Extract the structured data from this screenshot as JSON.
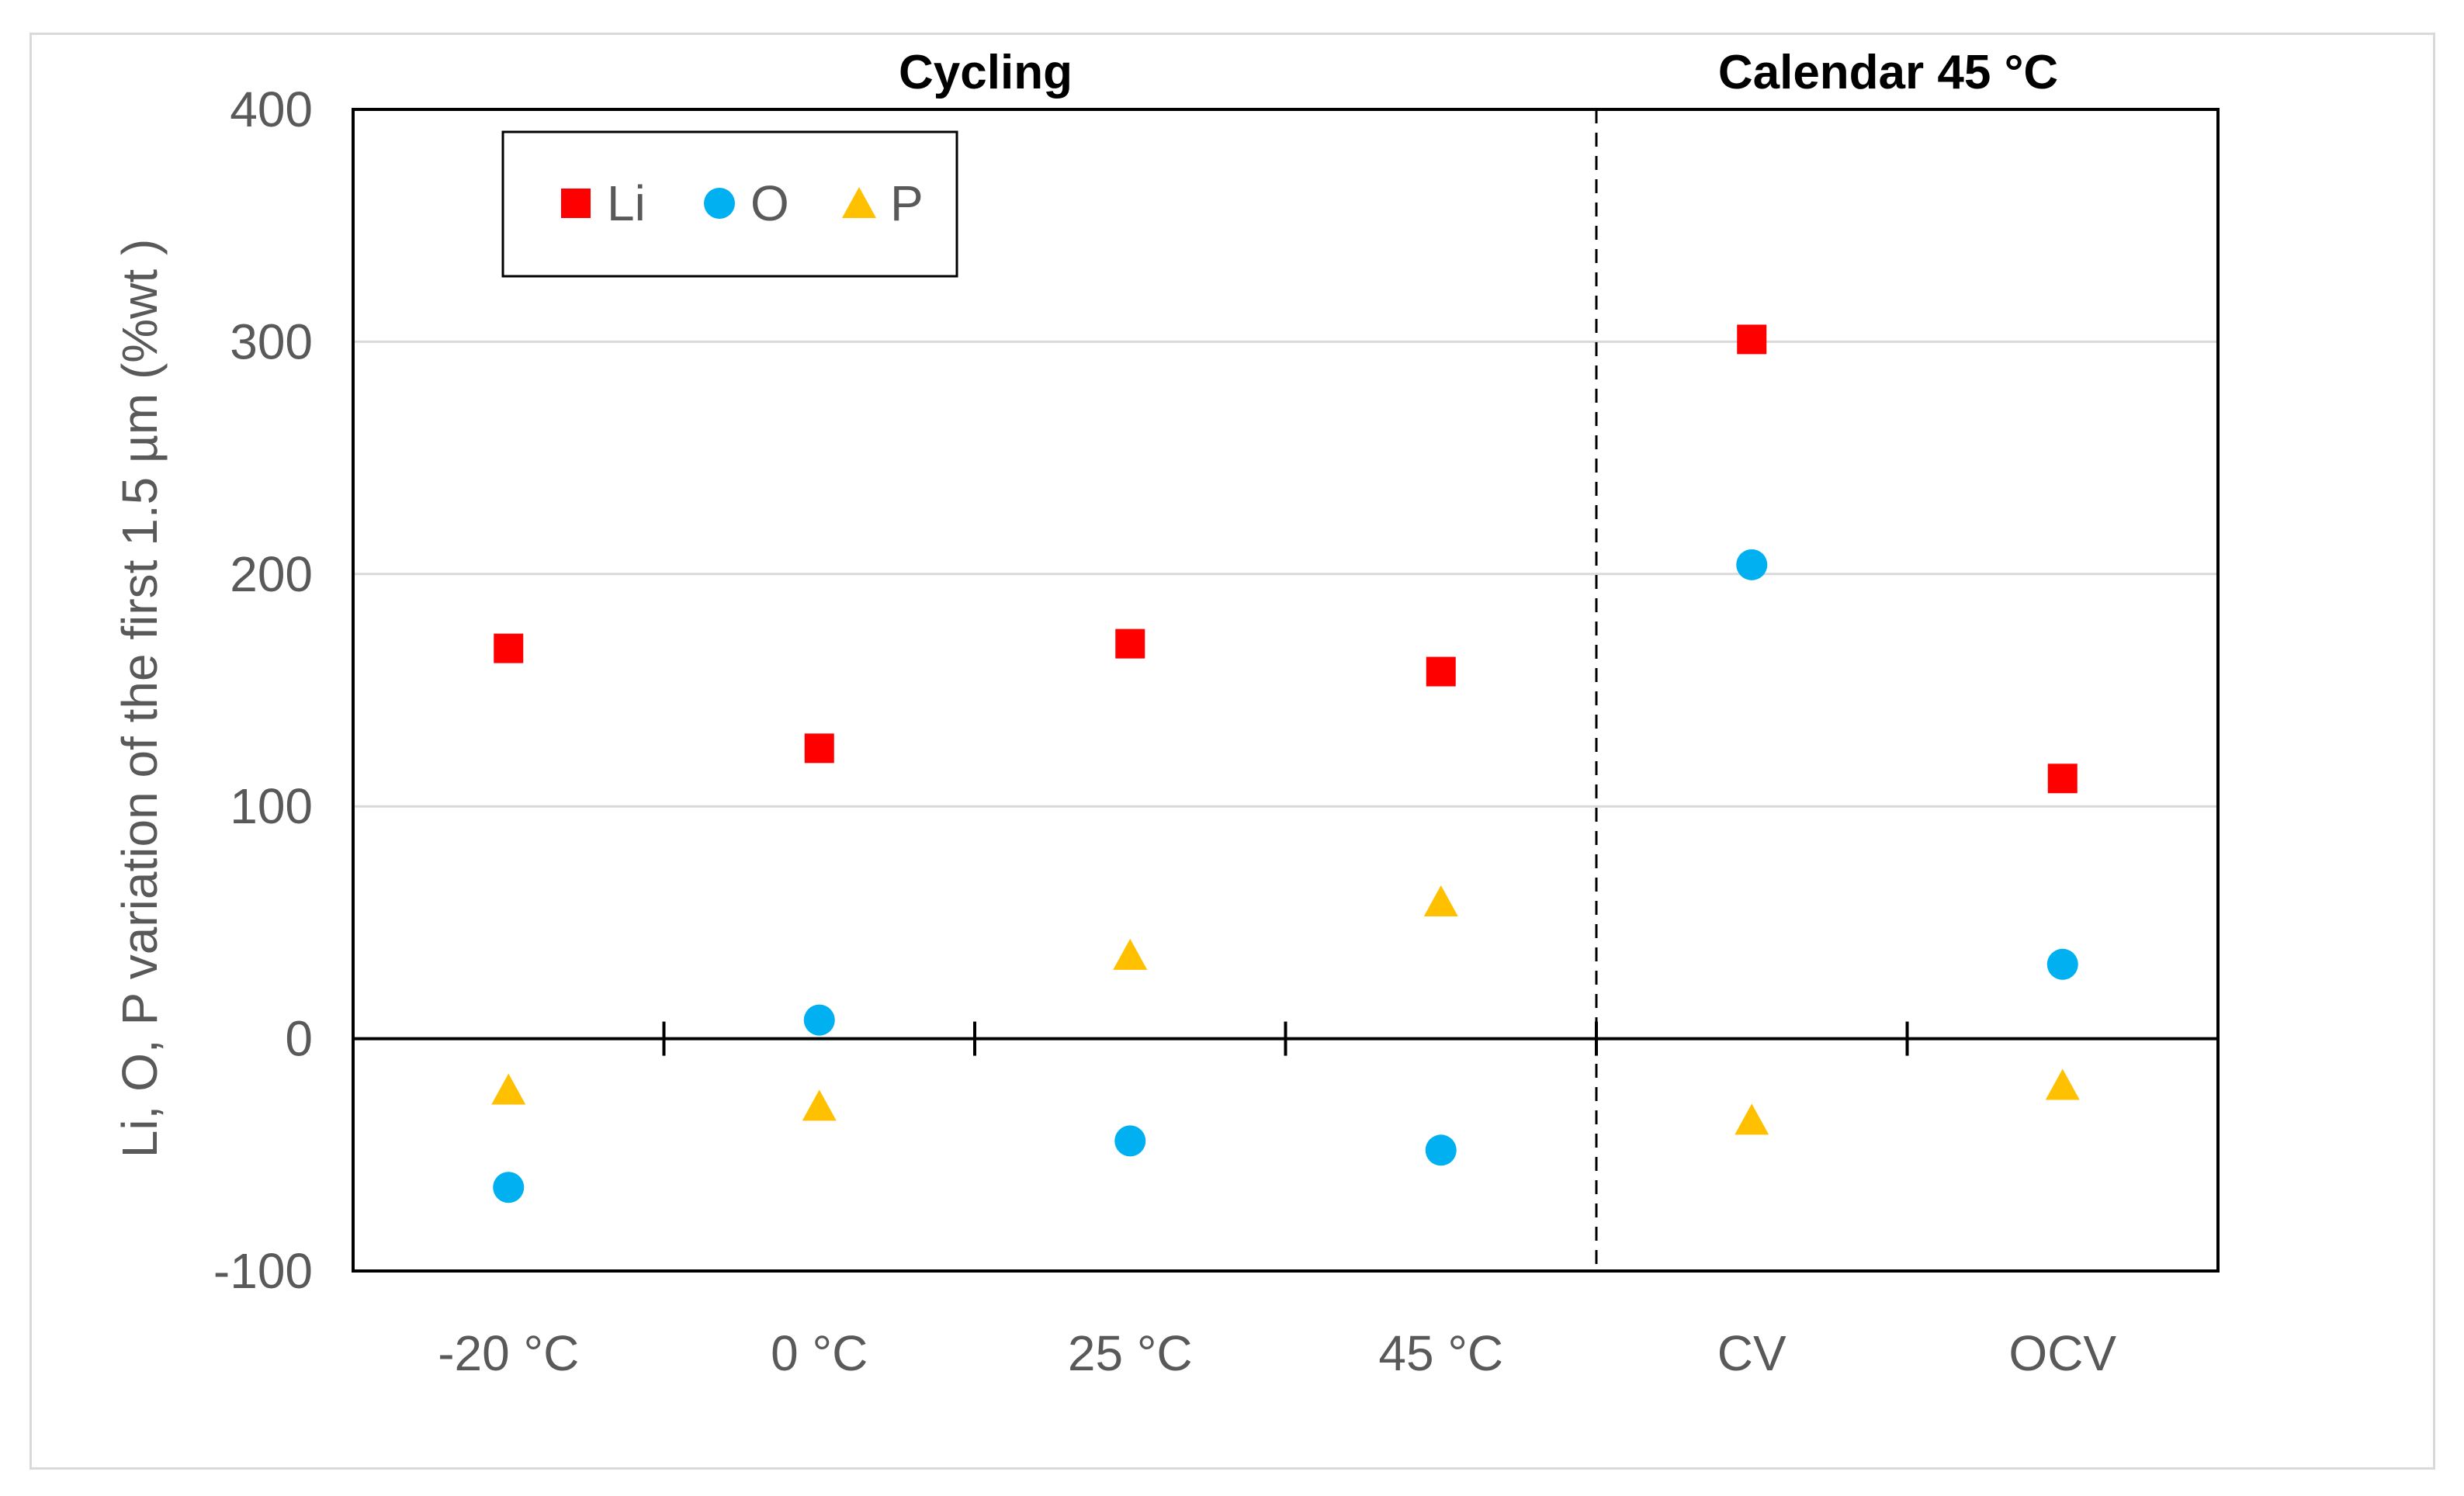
{
  "chart_data": {
    "type": "scatter",
    "categories": [
      "-20 °C",
      "0 °C",
      "25 °C",
      "45 °C",
      "CV",
      "OCV"
    ],
    "series": [
      {
        "name": "Li",
        "marker": "square",
        "color": "#ff0000",
        "values": [
          168,
          125,
          170,
          158,
          301,
          112
        ]
      },
      {
        "name": "O",
        "marker": "circle",
        "color": "#00b0f0",
        "values": [
          -64,
          8,
          -44,
          -48,
          204,
          32
        ]
      },
      {
        "name": "P",
        "marker": "triangle",
        "color": "#ffc000",
        "values": [
          -22,
          -29,
          36,
          59,
          -35,
          -20
        ]
      }
    ],
    "ylabel": "Li, O, P  variation of the first  1.5 µm (%wt )",
    "ylim": [
      -100,
      400
    ],
    "yticks": [
      400,
      300,
      200,
      100,
      0,
      -100
    ],
    "grid": true,
    "legend_position": "top-left",
    "group_divider_after": "45 °C",
    "groups": [
      "Cycling",
      "Calendar 45 °C"
    ]
  }
}
